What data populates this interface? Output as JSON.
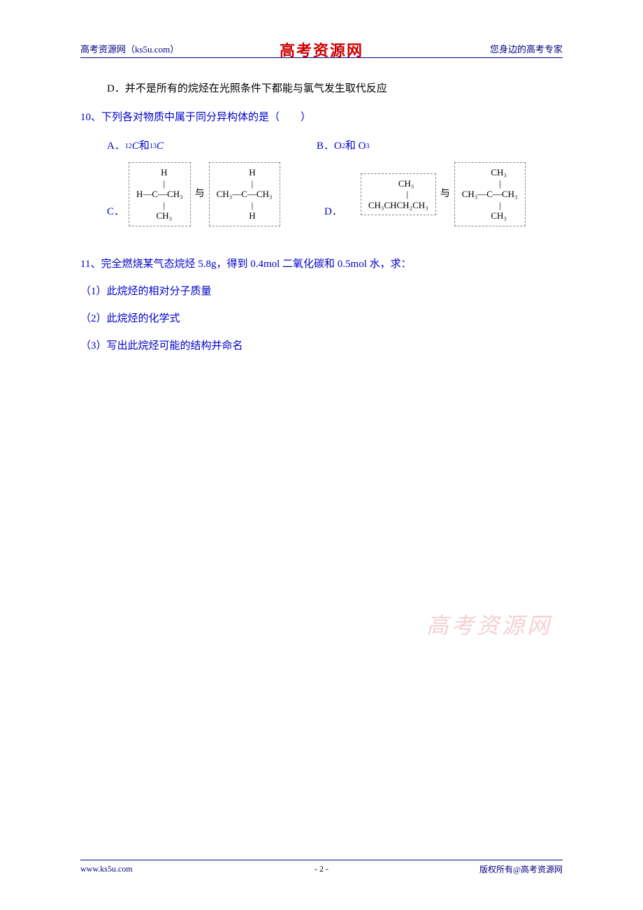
{
  "header": {
    "left": "高考资源网（ks5u.com）",
    "center": "高考资源网",
    "right": "您身边的高考专家"
  },
  "content": {
    "optionD_prev": "D．并不是所有的烷烃在光照条件下都能与氯气发生取代反应",
    "q10": {
      "stem": "10、下列各对物质中属于同分异构体的是（　　）",
      "optA_label": "A．",
      "optA_sup1": "12",
      "optA_C1": "C",
      "optA_and": "和",
      "optA_sup2": "13",
      "optA_C2": "C",
      "optB_label": "B．O",
      "optB_sub1": "2",
      "optB_and": "和 O",
      "optB_sub2": "3",
      "optC_label": "C．",
      "optD_label": "D．",
      "yu": "与",
      "structC1": "    H\n    |\nH—C—CH₃\n    |\n    CH₃",
      "structC2": "       H\n       |\nCH₃—C—CH₃\n       |\n       H",
      "structD1": "       CH₃\n        |\nCH₃CHCH₂CH₃",
      "structD2": "        CH₃\n         |\nCH₃—C—CH₃\n         |\n        CH₃"
    },
    "q11": {
      "stem": "11、完全燃烧某气态烷烃 5.8g，得到 0.4mol 二氧化碳和 0.5mol 水，求：",
      "sub1": "（1）此烷烃的相对分子质量",
      "sub2": "（2）此烷烃的化学式",
      "sub3": "（3）写出此烷烃可能的结构并命名"
    }
  },
  "watermark": "高考资源网",
  "footer": {
    "left": "www.ks5u.com",
    "center": "- 2 -",
    "right": "版权所有@高考资源网"
  },
  "colors": {
    "blue": "#0000cc",
    "navy": "#000080",
    "red": "#cc0000",
    "watermark": "#f5d0d5",
    "black": "#000000"
  }
}
